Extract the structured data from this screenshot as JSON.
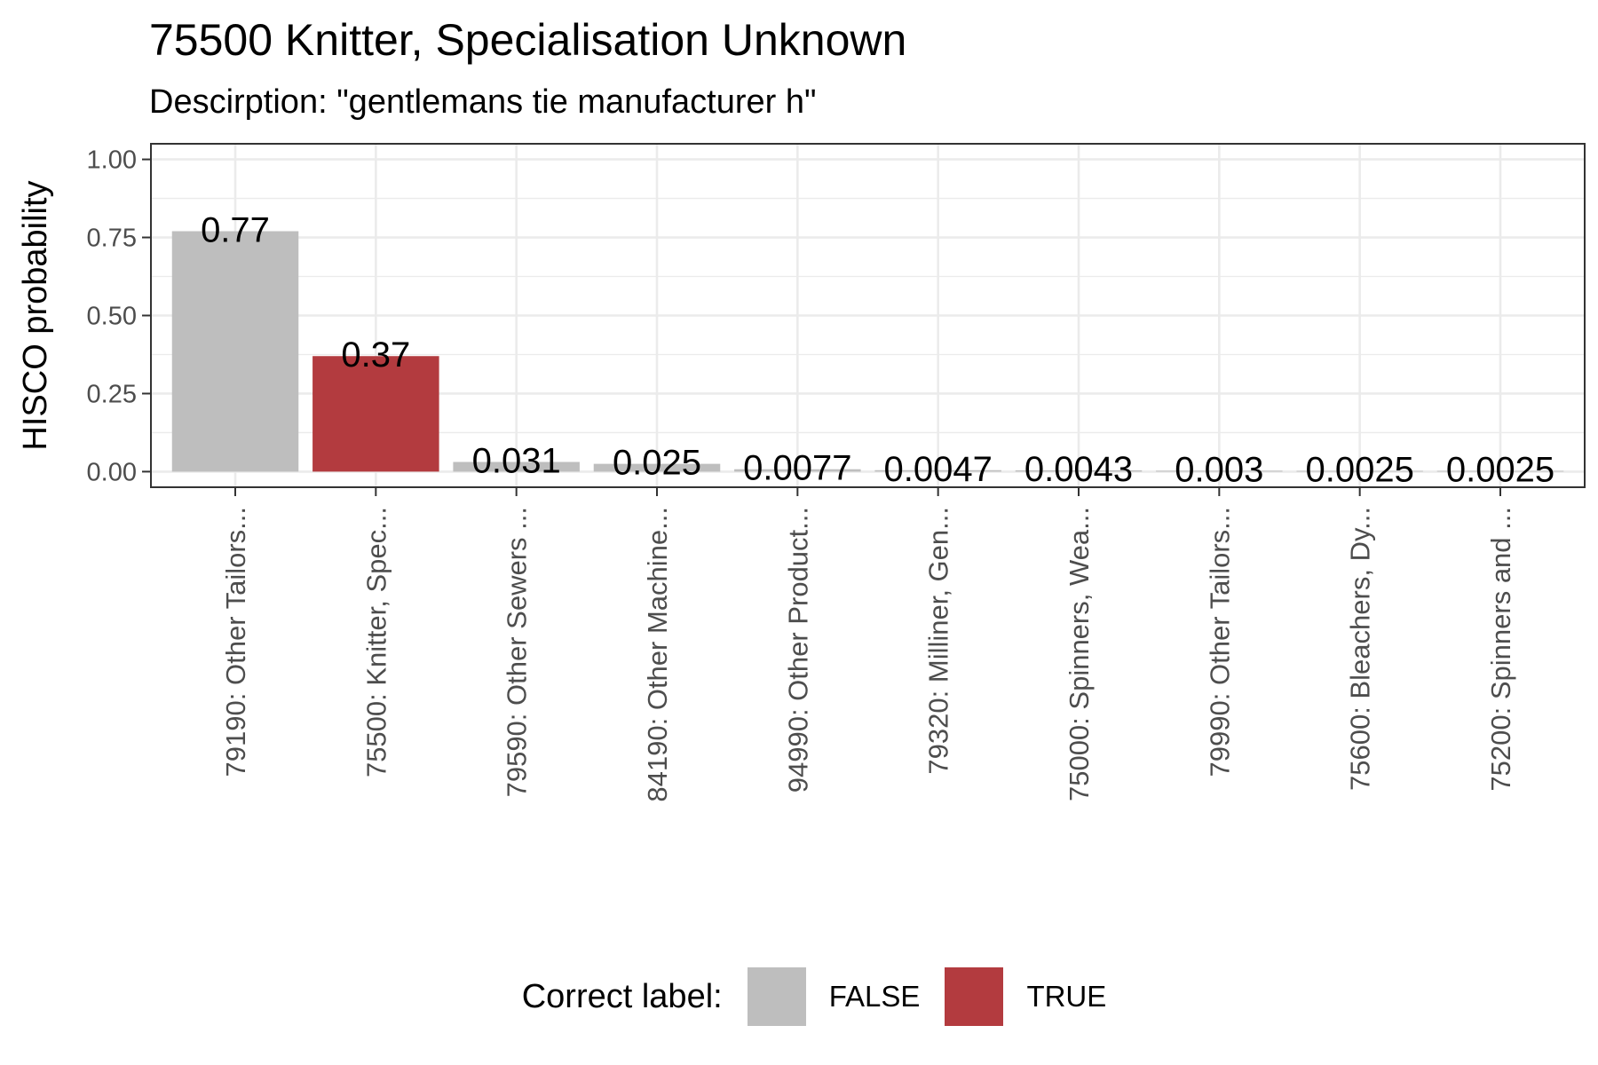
{
  "title": "75500 Knitter, Specialisation Unknown",
  "subtitle": "Descirption: \"gentlemans tie manufacturer h\"",
  "colors": {
    "false": "#bebebe",
    "true": "#b33b3f",
    "grid": "#ebebeb",
    "panel_border": "#333333"
  },
  "legend": {
    "title": "Correct label:",
    "items": [
      {
        "label": "FALSE",
        "key": "false"
      },
      {
        "label": "TRUE",
        "key": "true"
      }
    ]
  },
  "chart_data": {
    "type": "bar",
    "ylabel": "HISCO probability",
    "xlabel": "",
    "ylim": [
      0,
      1
    ],
    "yticks": [
      "0.00",
      "0.25",
      "0.50",
      "0.75",
      "1.00"
    ],
    "grid": true,
    "legend_position": "bottom",
    "categories": [
      "79190: Other Tailors...",
      "75500: Knitter, Spec...",
      "79590: Other Sewers ...",
      "84190: Other Machine...",
      "94990: Other Product...",
      "79320: Milliner, Gen...",
      "75000: Spinners, Wea...",
      "79990: Other Tailors...",
      "75600: Bleachers, Dy...",
      "75200: Spinners and ..."
    ],
    "values": [
      0.77,
      0.37,
      0.031,
      0.025,
      0.0077,
      0.0047,
      0.0043,
      0.003,
      0.0025,
      0.0025
    ],
    "value_labels": [
      "0.77",
      "0.37",
      "0.031",
      "0.025",
      "0.0077",
      "0.0047",
      "0.0043",
      "0.003",
      "0.0025",
      "0.0025"
    ],
    "correct": [
      false,
      true,
      false,
      false,
      false,
      false,
      false,
      false,
      false,
      false
    ]
  }
}
